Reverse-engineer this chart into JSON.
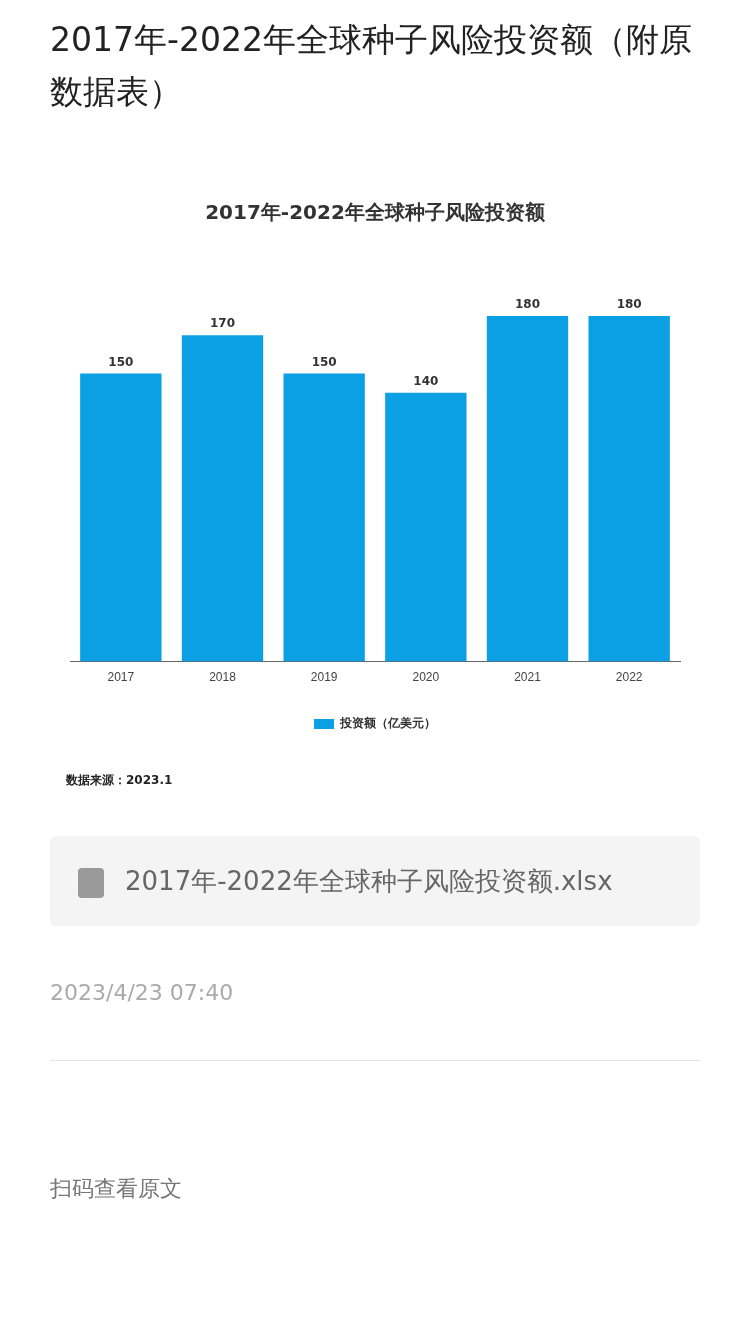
{
  "chart_data": {
    "type": "bar",
    "title": "2017年-2022年全球种子风险投资额（附原数据表）",
    "subtitle": "2017年-2022年全球种子风险投资额",
    "categories": [
      "2017",
      "2018",
      "2019",
      "2020",
      "2021",
      "2022"
    ],
    "series": [
      {
        "name": "投资额（亿美元）",
        "color": "#0ba0e4",
        "values": [
          150,
          170,
          150,
          140,
          180,
          180
        ]
      }
    ],
    "data_labels": true,
    "legend": "bottom",
    "grid": false,
    "tick_labels": "x",
    "annotations": [
      "数据来源：2023.1",
      "2017年-2022年全球种子风险投资额.xlsx",
      "2023/4/23 07:40",
      "扫码查看原文"
    ]
  }
}
